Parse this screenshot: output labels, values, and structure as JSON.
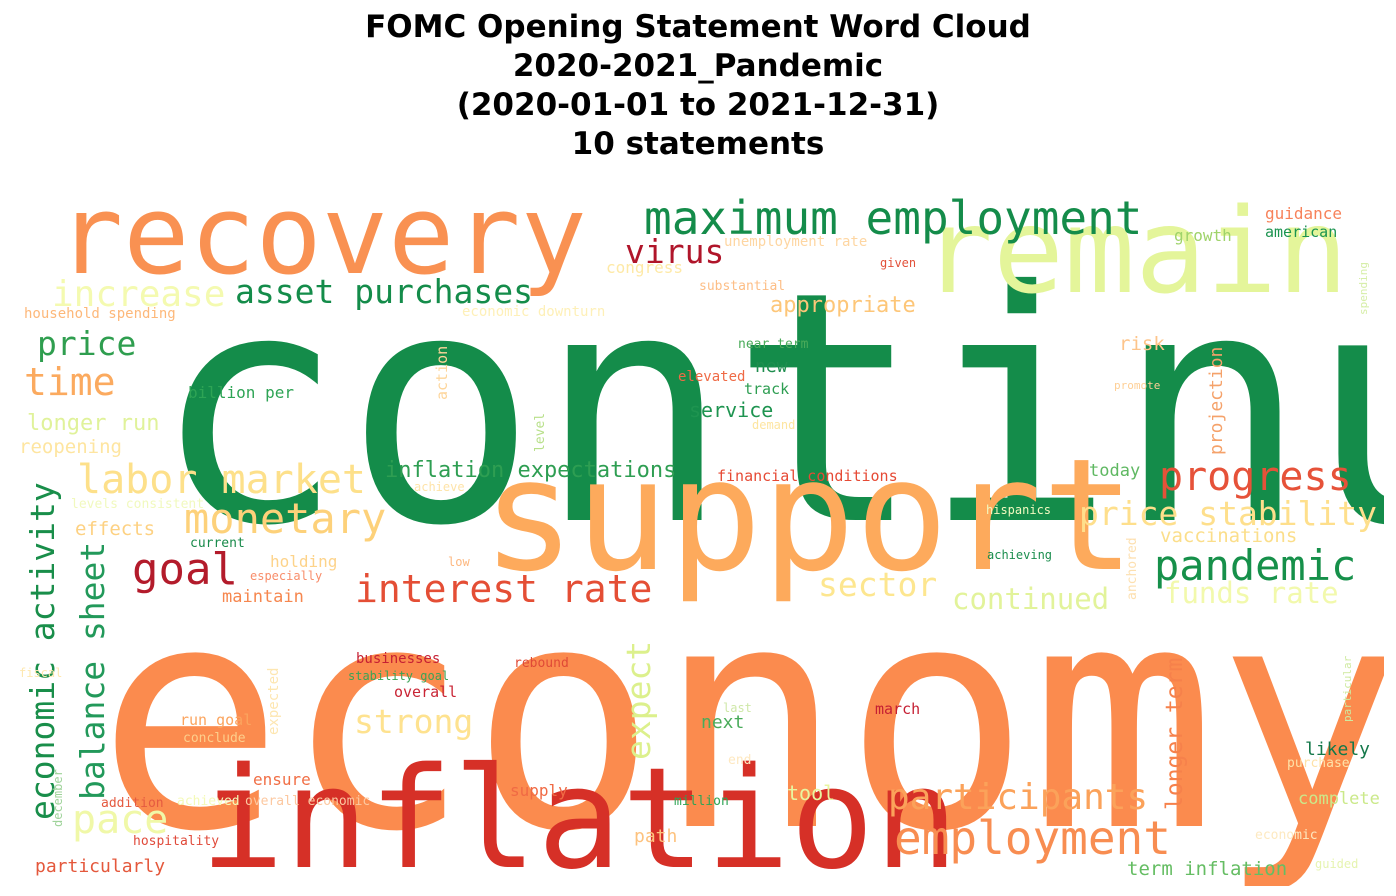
{
  "title_lines": [
    "FOMC Opening Statement Word Cloud",
    "2020-2021_Pandemic",
    "(2020-01-01 to 2021-12-31)",
    "10 statements"
  ],
  "words": [
    {
      "text": "continue",
      "color": "#148c4a"
    },
    {
      "text": "economy",
      "color": "#fb8b4e"
    },
    {
      "text": "support",
      "color": "#fdaa5c"
    },
    {
      "text": "recovery",
      "color": "#f99152"
    },
    {
      "text": "remain",
      "color": "#e4f59a"
    },
    {
      "text": "inflation",
      "color": "#d63027"
    },
    {
      "text": "maximum employment",
      "color": "#148c4a"
    },
    {
      "text": "employment",
      "color": "#f88d51"
    },
    {
      "text": "participants",
      "color": "#fba25a"
    },
    {
      "text": "labor market",
      "color": "#fde08a"
    },
    {
      "text": "monetary",
      "color": "#fdd17a"
    },
    {
      "text": "pandemic",
      "color": "#16904a"
    },
    {
      "text": "progress",
      "color": "#e65239"
    },
    {
      "text": "price stability",
      "color": "#fedf8c"
    },
    {
      "text": "interest rate",
      "color": "#e44e35"
    },
    {
      "text": "economic activity",
      "color": "#198e4a"
    },
    {
      "text": "balance sheet",
      "color": "#22995a"
    },
    {
      "text": "goal",
      "color": "#b31b2b"
    },
    {
      "text": "asset purchases",
      "color": "#148c4a"
    },
    {
      "text": "increase",
      "color": "#f4fab0"
    },
    {
      "text": "virus",
      "color": "#b0152a"
    },
    {
      "text": "price",
      "color": "#2f9e4f"
    },
    {
      "text": "time",
      "color": "#fbaa5f"
    },
    {
      "text": "pace",
      "color": "#f0f8a8"
    },
    {
      "text": "expect",
      "color": "#dcf08c"
    },
    {
      "text": "strong",
      "color": "#fee28f"
    },
    {
      "text": "sector",
      "color": "#fde68f"
    },
    {
      "text": "continued",
      "color": "#e2f39a"
    },
    {
      "text": "funds rate",
      "color": "#f2f9ac"
    },
    {
      "text": "longer term",
      "color": "#f6814b"
    },
    {
      "text": "inflation expectations",
      "color": "#2e9e52"
    },
    {
      "text": "appropriate",
      "color": "#fdc678"
    },
    {
      "text": "longer run",
      "color": "#e0f29a"
    },
    {
      "text": "vaccinations",
      "color": "#fbde8a"
    },
    {
      "text": "reopening",
      "color": "#fee5a0"
    },
    {
      "text": "effects",
      "color": "#fdd182"
    },
    {
      "text": "service",
      "color": "#1e9450"
    },
    {
      "text": "projection",
      "color": "#f5a26a"
    },
    {
      "text": "tool",
      "color": "#e8f5a0"
    },
    {
      "text": "risk",
      "color": "#fdc48a"
    },
    {
      "text": "new",
      "color": "#1f8e4f"
    },
    {
      "text": "next",
      "color": "#4aab5a"
    },
    {
      "text": "likely",
      "color": "#14784a"
    },
    {
      "text": "complete",
      "color": "#cbe98a"
    },
    {
      "text": "term inflation",
      "color": "#65bd63"
    },
    {
      "text": "growth",
      "color": "#9fd36a"
    },
    {
      "text": "guidance",
      "color": "#f7825a"
    },
    {
      "text": "american",
      "color": "#1b9450"
    },
    {
      "text": "today",
      "color": "#5fb862"
    },
    {
      "text": "financial conditions",
      "color": "#e64a35"
    },
    {
      "text": "path",
      "color": "#fdc27e"
    },
    {
      "text": "supply",
      "color": "#f06a44"
    },
    {
      "text": "ensure",
      "color": "#f16f46"
    },
    {
      "text": "particularly",
      "color": "#e4583c"
    },
    {
      "text": "maintain",
      "color": "#f6874f"
    },
    {
      "text": "holding",
      "color": "#fdd38a"
    },
    {
      "text": "run goal",
      "color": "#fba45e"
    },
    {
      "text": "businesses",
      "color": "#c62033"
    },
    {
      "text": "stability goal",
      "color": "#3aa356"
    },
    {
      "text": "overall",
      "color": "#c92535"
    },
    {
      "text": "march",
      "color": "#c51f33"
    },
    {
      "text": "rebound",
      "color": "#e04a36"
    },
    {
      "text": "billion per",
      "color": "#2ea455"
    },
    {
      "text": "household spending",
      "color": "#fdb87a"
    },
    {
      "text": "congress",
      "color": "#fee9a6"
    },
    {
      "text": "unemployment rate",
      "color": "#fed6a2"
    },
    {
      "text": "economic downturn",
      "color": "#fef0b8"
    },
    {
      "text": "substantial",
      "color": "#fdbe86"
    },
    {
      "text": "near term",
      "color": "#4aab5a"
    },
    {
      "text": "elevated",
      "color": "#ef6a45"
    },
    {
      "text": "track",
      "color": "#2e9e52"
    },
    {
      "text": "demand",
      "color": "#fde5a0"
    },
    {
      "text": "given",
      "color": "#e2513a"
    },
    {
      "text": "promote",
      "color": "#fecf96"
    },
    {
      "text": "action",
      "color": "#fdd59a"
    },
    {
      "text": "level",
      "color": "#b8e08a"
    },
    {
      "text": "achieve",
      "color": "#fee3a8"
    },
    {
      "text": "levels consistent",
      "color": "#f1f9be"
    },
    {
      "text": "current",
      "color": "#188a4a"
    },
    {
      "text": "especially",
      "color": "#f88d6a"
    },
    {
      "text": "low",
      "color": "#fdb880"
    },
    {
      "text": "hispanics",
      "color": "#f2f9c0"
    },
    {
      "text": "achieving",
      "color": "#1b8e4e"
    },
    {
      "text": "anchored",
      "color": "#fde0b0"
    },
    {
      "text": "spending",
      "color": "#d6eea8"
    },
    {
      "text": "particular",
      "color": "#cfeaa0"
    },
    {
      "text": "conclude",
      "color": "#fdcf8c"
    },
    {
      "text": "expected",
      "color": "#fde6b0"
    },
    {
      "text": "fiscal",
      "color": "#fee8b0"
    },
    {
      "text": "december",
      "color": "#9fd39a"
    },
    {
      "text": "addition",
      "color": "#e55a40"
    },
    {
      "text": "achieved",
      "color": "#f4fab8"
    },
    {
      "text": "overall economic",
      "color": "#fcc8a0"
    },
    {
      "text": "hospitality",
      "color": "#e04a3a"
    },
    {
      "text": "million",
      "color": "#2ea455"
    },
    {
      "text": "last",
      "color": "#cfe8a8"
    },
    {
      "text": "end",
      "color": "#fee8c0"
    },
    {
      "text": "purchase",
      "color": "#fee2a8"
    },
    {
      "text": "economic",
      "color": "#fde9c0"
    },
    {
      "text": "guided",
      "color": "#e6f4b0"
    }
  ]
}
